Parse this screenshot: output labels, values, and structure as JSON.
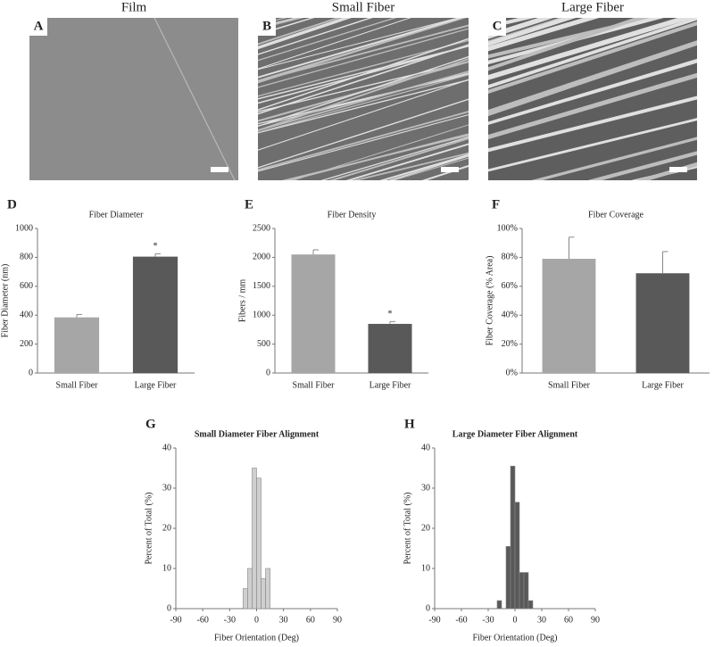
{
  "images": [
    {
      "label": "A",
      "title": "Film"
    },
    {
      "label": "B",
      "title": "Small Fiber"
    },
    {
      "label": "C",
      "title": "Large Fiber"
    }
  ],
  "chart_data": [
    {
      "type": "bar",
      "label": "D",
      "title": "Fiber Diameter",
      "ylabel": "Fiber Diameter (nm)",
      "categories": [
        "Small Fiber",
        "Large Fiber"
      ],
      "values": [
        385,
        805
      ],
      "errors": [
        20,
        20
      ],
      "colors": [
        "#a6a6a6",
        "#595959"
      ],
      "ylim": [
        0,
        1000
      ],
      "yticks": [
        0,
        200,
        400,
        600,
        800,
        1000
      ],
      "annotations": [
        {
          "x": "Large Fiber",
          "text": "*"
        }
      ]
    },
    {
      "type": "bar",
      "label": "E",
      "title": "Fiber Density",
      "ylabel": "Fibers / mm",
      "categories": [
        "Small Fiber",
        "Large Fiber"
      ],
      "values": [
        2050,
        850
      ],
      "errors": [
        80,
        40
      ],
      "colors": [
        "#a6a6a6",
        "#595959"
      ],
      "ylim": [
        0,
        2500
      ],
      "yticks": [
        0,
        500,
        1000,
        1500,
        2000,
        2500
      ],
      "annotations": [
        {
          "x": "Large Fiber",
          "text": "*"
        }
      ]
    },
    {
      "type": "bar",
      "label": "F",
      "title": "Fiber Coverage",
      "ylabel": "Fiber Coverage (% Area)",
      "categories": [
        "Small Fiber",
        "Large Fiber"
      ],
      "values": [
        79,
        69
      ],
      "errors": [
        15,
        15
      ],
      "colors": [
        "#a6a6a6",
        "#595959"
      ],
      "ylim": [
        0,
        100
      ],
      "yticks": [
        {
          "value": 0,
          "label": "0%"
        },
        {
          "value": 20,
          "label": "20%"
        },
        {
          "value": 40,
          "label": "40%"
        },
        {
          "value": 60,
          "label": "60%"
        },
        {
          "value": 80,
          "label": "80%"
        },
        {
          "value": 100,
          "label": "100%"
        }
      ]
    },
    {
      "type": "histogram",
      "label": "G",
      "title": "Small Diameter Fiber Alignment",
      "xlabel": "Fiber Orientation (Deg)",
      "ylabel": "Percent of Total (%)",
      "bins": [
        -15,
        -10,
        -5,
        0,
        5,
        10,
        15
      ],
      "values": [
        5,
        10,
        35,
        32.5,
        7.5,
        10
      ],
      "color": "#cfcfcf",
      "xlim": [
        -90,
        90
      ],
      "xticks": [
        -90,
        -60,
        -30,
        0,
        30,
        60,
        90
      ],
      "ylim": [
        0,
        40
      ],
      "yticks": [
        0,
        10,
        20,
        30,
        40
      ]
    },
    {
      "type": "histogram",
      "label": "H",
      "title": "Large Diameter Fiber Alignment",
      "xlabel": "Fiber Orientation (Deg)",
      "ylabel": "Percent of Total (%)",
      "bins": [
        -20,
        -15,
        -10,
        -5,
        0,
        5,
        10,
        15,
        20
      ],
      "values": [
        2,
        0,
        15.5,
        35.5,
        26.5,
        9,
        9,
        2
      ],
      "color": "#595959",
      "xlim": [
        -90,
        90
      ],
      "xticks": [
        -90,
        -60,
        -30,
        0,
        30,
        60,
        90
      ],
      "ylim": [
        0,
        40
      ],
      "yticks": [
        0,
        10,
        20,
        30,
        40
      ]
    }
  ]
}
